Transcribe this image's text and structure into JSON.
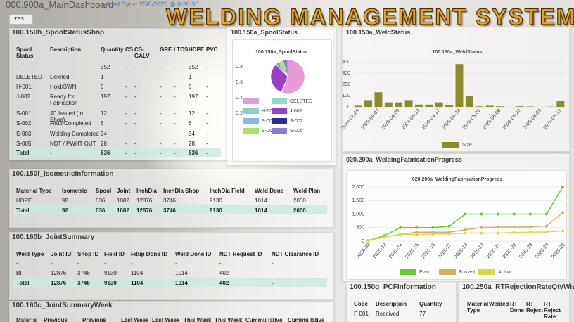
{
  "header": {
    "title": "000.900a_MainDashboard",
    "sync": "- Last Sync: 25/6/2025 @ 6:26:36",
    "button": "TES...",
    "banner": "WELDING MANAGEMENT SYSTEM"
  },
  "tables": {
    "spool": {
      "title": "100.150b_SpoolStatusShop",
      "columns": [
        "Spool Status",
        "Description",
        "Quantity",
        "CS",
        "CS-GALV",
        "GRE",
        "LTCS",
        "HDPE",
        "PVC"
      ],
      "rows": [
        [
          "-",
          "-",
          "352",
          "-",
          "-",
          "-",
          "-",
          "352",
          "-"
        ],
        [
          "DELETED",
          "Deleted",
          "1",
          "-",
          "-",
          "-",
          "-",
          "1",
          "-"
        ],
        [
          "H-001",
          "Hold/SWN",
          "6",
          "-",
          "-",
          "-",
          "-",
          "6",
          "-"
        ],
        [
          "J-002",
          "Ready for Fabrication",
          "197",
          "-",
          "-",
          "-",
          "-",
          "197",
          "-"
        ],
        [
          "S-001",
          "JC Issued (In Shop)",
          "12",
          "-",
          "-",
          "-",
          "-",
          "12",
          "-"
        ],
        [
          "S-002",
          "Fitup Completed",
          "6",
          "-",
          "-",
          "-",
          "-",
          "6",
          "-"
        ],
        [
          "S-003",
          "Welding Completed",
          "34",
          "-",
          "-",
          "-",
          "-",
          "34",
          "-"
        ],
        [
          "S-005",
          "NDT / PWHT OUT",
          "28",
          "-",
          "-",
          "-",
          "-",
          "28",
          "-"
        ],
        [
          "Total",
          "-",
          "636",
          "-",
          "-",
          "-",
          "-",
          "636",
          "-"
        ]
      ]
    },
    "iso": {
      "title": "100.150f_IsometricInformation",
      "columns": [
        "Material Type",
        "Isometric",
        "Spool",
        "Joint",
        "InchDia",
        "InchDia Shop",
        "InchDia Field",
        "Weld Done",
        "Weld Plan"
      ],
      "rows": [
        [
          "HDPE",
          "92",
          "636",
          "1082",
          "12876",
          "3746",
          "9130",
          "1014",
          "2000"
        ],
        [
          "Total",
          "92",
          "636",
          "1082",
          "12876",
          "3746",
          "9130",
          "1014",
          "2000"
        ]
      ]
    },
    "joint": {
      "title": "100.160b_JointSummary",
      "columns": [
        "Weld Type",
        "Joint ID",
        "Shop ID",
        "Field ID",
        "Fitup Done ID",
        "Weld Done ID",
        "NDT Request ID",
        "NDT Clearance ID"
      ],
      "rows": [
        [
          "-",
          "-",
          "-",
          "-",
          "-",
          "-",
          "-",
          "-"
        ],
        [
          "BF",
          "12876",
          "3746",
          "9130",
          "1104",
          "1014",
          "402",
          "-"
        ],
        [
          "Total",
          "12876",
          "3746",
          "9130",
          "1104",
          "1014",
          "402",
          "-"
        ]
      ]
    },
    "week": {
      "title": "100.160c_JointSummaryWeek",
      "columns": [
        "Material",
        "Previous",
        "Previous",
        "Last Week",
        "Last Week",
        "This Week",
        "This Week",
        "Cummu lative",
        "Cummu lative"
      ],
      "rows": []
    },
    "pcf": {
      "title": "100.150g_PCFInformation",
      "columns": [
        "Code",
        "Description",
        "Quantity"
      ],
      "rows": [
        [
          "F-001",
          "Received",
          "77"
        ]
      ]
    },
    "rt": {
      "title": "100.250a_RTRejectionRateQtyWise",
      "columns": [
        "Material Type",
        "Welded",
        "RT Done",
        "RT Reject",
        "RT Reject Rate"
      ],
      "rows": []
    }
  },
  "charts": {
    "pie": {
      "type": "pie",
      "panel_title": "100.150a_SpoolStatus",
      "title": "100.150a_SpoolStatus",
      "categories": [
        null,
        "DELETED",
        "H-001",
        "J-002",
        "S-001",
        "S-002",
        "S-003",
        "S-005"
      ],
      "values": [
        352,
        1,
        6,
        197,
        12,
        6,
        34,
        28
      ],
      "colors": [
        "#e79ad6",
        "#8fdcc4",
        "#7fd6c6",
        "#9a3fc6",
        "#8cb8e2",
        "#2c2c9c",
        "#a8e063",
        "#8a7ad8"
      ],
      "ylim": [
        0,
        1
      ],
      "yticks": [
        0.2,
        0.4,
        0.6,
        0.8
      ]
    },
    "weld": {
      "type": "bar",
      "panel_title": "100.150a_WeldStatus",
      "title": "100.150a_WeldStatus",
      "categories": [
        "2024-02-24",
        null,
        "2025-04-07",
        null,
        "2025-04-09",
        null,
        "2025-04-12",
        null,
        "2025-04-17",
        null,
        "2025-04-22",
        null,
        "2025-05-01",
        null,
        "2025-05-08",
        null,
        "2025-05-27",
        null,
        "2025-06-03",
        null,
        "2025-06-13"
      ],
      "series": [
        {
          "name": "Size",
          "color": "#8b8b2c",
          "values": [
            10,
            60,
            130,
            40,
            40,
            60,
            20,
            20,
            40,
            15,
            380,
            95,
            5,
            10,
            5,
            0,
            5,
            3,
            0,
            2,
            50
          ]
        }
      ],
      "ylim": [
        0,
        400
      ],
      "yticks": [
        0,
        100,
        200,
        300,
        400
      ],
      "grid": true
    },
    "progress": {
      "type": "line",
      "panel_title": "020.200a_WeldingFabricationProgress",
      "title": "020.200a_WeldingFabricationProgress",
      "categories": [
        "2024-08",
        "2025-12",
        "2025-14",
        "2025-15",
        "2025-16",
        "2025-17",
        "2025-18",
        "2025-19",
        "2025-21",
        "2025-22",
        "2025-23",
        "2025-24",
        "2025-26"
      ],
      "series": [
        {
          "name": "Plan",
          "color": "#66cc33",
          "values": [
            20,
            200,
            500,
            500,
            500,
            550,
            1000,
            1000,
            1000,
            1000,
            1000,
            1000,
            2000
          ]
        },
        {
          "name": "Forcast",
          "color": "#d4b062",
          "values": [
            20,
            150,
            250,
            330,
            330,
            330,
            420,
            500,
            520,
            520,
            530,
            560,
            1050
          ]
        },
        {
          "name": "Actual",
          "color": "#d8d840",
          "values": [
            20,
            150,
            250,
            250,
            260,
            270,
            300,
            300,
            300,
            320,
            330,
            340,
            380
          ]
        }
      ],
      "ylim": [
        0,
        2000
      ],
      "yticks": [
        0,
        500,
        {
          "value": 1000,
          "label": "1,000"
        },
        {
          "value": 1500,
          "label": "1,500"
        },
        {
          "value": 2000,
          "label": "2,000"
        }
      ],
      "grid": true
    }
  }
}
